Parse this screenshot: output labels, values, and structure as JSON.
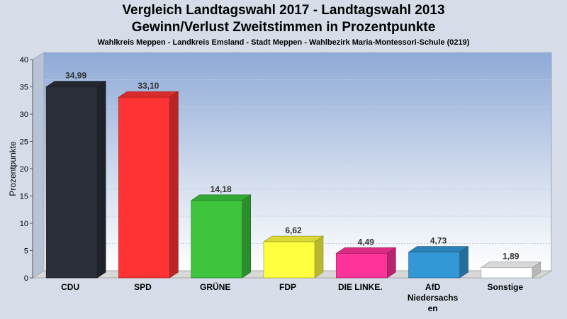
{
  "chart_data": {
    "type": "bar",
    "title": "Vergleich Landtagswahl 2017 - Landtagswahl 2013",
    "title2": "Gewinn/Verlust Zweitstimmen in Prozentpunkte",
    "subtitle": "Wahlkreis Meppen - Landkreis Emsland - Stadt Meppen - Wahlbezirk Maria-Montessori-Schule (0219)",
    "ylabel": "Prozentpunkte",
    "xlabel": "",
    "ylim": [
      0,
      40
    ],
    "yticks": [
      "0",
      "5",
      "10",
      "15",
      "20",
      "25",
      "30",
      "35",
      "40"
    ],
    "grid": true,
    "categories": [
      "CDU",
      "SPD",
      "GRÜNE",
      "FDP",
      "DIE LINKE.",
      [
        "AfD",
        "Niedersachs",
        "en"
      ],
      "Sonstige"
    ],
    "values": [
      34.99,
      33.1,
      14.18,
      6.62,
      4.49,
      4.73,
      1.89
    ],
    "value_labels": [
      "34,99",
      "33,10",
      "14,18",
      "6,62",
      "4,49",
      "4,73",
      "1,89"
    ],
    "colors": [
      "#2b2f3a",
      "#ff3333",
      "#3cc43c",
      "#ffff40",
      "#ff3399",
      "#3399d6",
      "#ffffff"
    ]
  }
}
